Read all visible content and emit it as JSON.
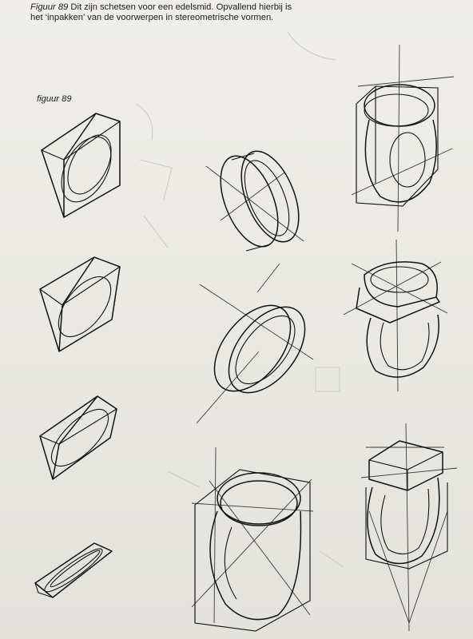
{
  "caption": {
    "figure_ref": "Figuur 89",
    "text": "Dit zijn schetsen voor een edelsmid. Opvallend hierbij is het ‘inpakken’ van de voorwerpen in stereometrische vormen."
  },
  "figure_label": "figuur 89"
}
